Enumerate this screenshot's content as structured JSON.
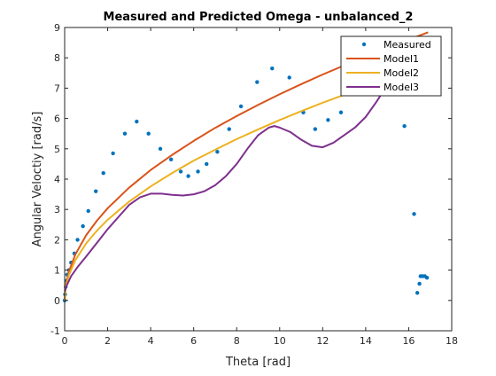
{
  "chart_data": {
    "type": "line",
    "title": "Measured and Predicted Omega - unbalanced_2",
    "xlabel": "Theta [rad]",
    "ylabel": "Angular Veloctiy [rad/s]",
    "xlim": [
      0,
      18
    ],
    "ylim": [
      -1,
      9
    ],
    "xticks": [
      "0",
      "2",
      "4",
      "6",
      "8",
      "10",
      "12",
      "14",
      "16",
      "18"
    ],
    "yticks": [
      "-1",
      "0",
      "1",
      "2",
      "3",
      "4",
      "5",
      "6",
      "7",
      "8",
      "9"
    ],
    "grid": false,
    "legend_position": "top-right",
    "series": [
      {
        "name": "Measured",
        "style": "points",
        "color": "#0072BD",
        "x": [
          0.0,
          0.02,
          0.05,
          0.08,
          0.12,
          0.2,
          0.3,
          0.45,
          0.6,
          0.85,
          1.1,
          1.45,
          1.8,
          2.25,
          2.8,
          3.35,
          3.9,
          4.45,
          4.95,
          5.4,
          5.75,
          6.2,
          6.6,
          7.1,
          7.65,
          8.2,
          8.95,
          9.65,
          10.45,
          11.1,
          11.65,
          12.25,
          12.85,
          15.8,
          16.25,
          16.4,
          16.5,
          16.55,
          16.65,
          16.75,
          16.85
        ],
        "y": [
          0.0,
          0.2,
          0.45,
          0.65,
          0.85,
          1.0,
          1.25,
          1.55,
          2.0,
          2.45,
          2.95,
          3.6,
          4.2,
          4.85,
          5.5,
          5.9,
          5.5,
          5.0,
          4.65,
          4.25,
          4.1,
          4.25,
          4.5,
          4.9,
          5.65,
          6.4,
          7.2,
          7.65,
          7.35,
          6.2,
          5.65,
          5.95,
          6.2,
          5.75,
          2.85,
          0.25,
          0.55,
          0.8,
          0.8,
          0.8,
          0.75
        ]
      },
      {
        "name": "Model1",
        "style": "line",
        "color": "#D95319",
        "x": [
          0,
          0.05,
          0.2,
          0.5,
          1,
          1.5,
          2,
          3,
          4,
          5,
          6,
          7,
          8,
          9,
          10,
          11,
          12,
          13,
          14,
          15,
          16,
          16.9
        ],
        "y": [
          0,
          0.5,
          0.96,
          1.52,
          2.15,
          2.63,
          3.04,
          3.72,
          4.3,
          4.8,
          5.26,
          5.69,
          6.08,
          6.45,
          6.8,
          7.13,
          7.45,
          7.75,
          8.05,
          8.33,
          8.6,
          8.84
        ]
      },
      {
        "name": "Model2",
        "style": "line",
        "color": "#EDB120",
        "x": [
          0,
          0.05,
          0.2,
          0.5,
          1,
          1.5,
          2,
          3,
          4,
          5,
          6,
          7,
          8,
          9,
          10,
          11,
          12,
          13,
          14,
          15,
          16,
          16.9
        ],
        "y": [
          0,
          0.44,
          0.84,
          1.33,
          1.88,
          2.3,
          2.66,
          3.26,
          3.76,
          4.2,
          4.61,
          4.97,
          5.32,
          5.64,
          5.95,
          6.24,
          6.52,
          6.78,
          7.04,
          7.29,
          7.52,
          7.73
        ]
      },
      {
        "name": "Model3",
        "style": "line",
        "color": "#7E2F8E",
        "x": [
          0,
          0.1,
          0.3,
          0.6,
          1,
          1.5,
          2,
          2.5,
          3,
          3.5,
          4,
          4.5,
          5,
          5.5,
          6,
          6.5,
          7,
          7.5,
          8,
          8.5,
          9,
          9.5,
          9.75,
          10,
          10.5,
          11,
          11.5,
          12,
          12.5,
          13,
          13.5,
          14,
          14.5,
          15
        ],
        "y": [
          0.3,
          0.5,
          0.8,
          1.1,
          1.45,
          1.9,
          2.35,
          2.75,
          3.15,
          3.4,
          3.52,
          3.52,
          3.48,
          3.46,
          3.5,
          3.6,
          3.8,
          4.1,
          4.5,
          5.0,
          5.45,
          5.7,
          5.75,
          5.7,
          5.55,
          5.3,
          5.1,
          5.05,
          5.2,
          5.45,
          5.7,
          6.05,
          6.55,
          7.1
        ]
      }
    ]
  }
}
